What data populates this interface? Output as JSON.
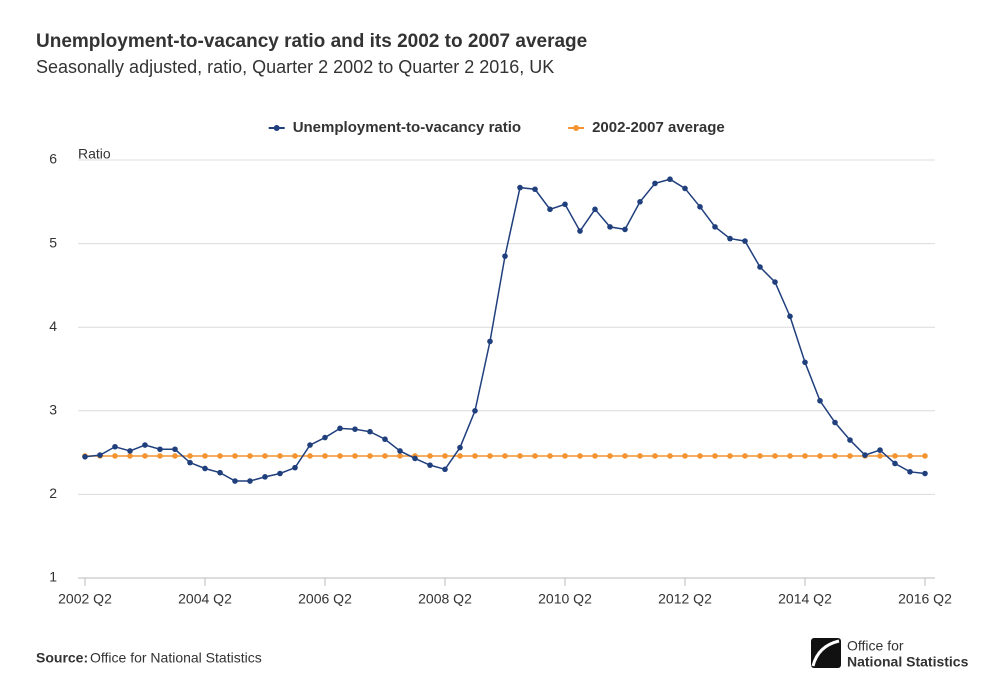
{
  "chart_data": {
    "type": "line",
    "title": "Unemployment-to-vacancy ratio and its 2002 to 2007 average",
    "subtitle": "Seasonally adjusted, ratio, Quarter 2 2002 to Quarter 2 2016, UK",
    "y_label": "Ratio",
    "categories": [
      "2002 Q2",
      null,
      null,
      null,
      null,
      null,
      null,
      null,
      "2004 Q2",
      null,
      null,
      null,
      null,
      null,
      null,
      null,
      "2006 Q2",
      null,
      null,
      null,
      null,
      null,
      null,
      null,
      "2008 Q2",
      null,
      null,
      null,
      null,
      null,
      null,
      null,
      "2010 Q2",
      null,
      null,
      null,
      null,
      null,
      null,
      null,
      "2012 Q2",
      null,
      null,
      null,
      null,
      null,
      null,
      null,
      "2014 Q2",
      null,
      null,
      null,
      null,
      null,
      null,
      null,
      "2016 Q2"
    ],
    "series": [
      {
        "name": "Unemployment-to-vacancy ratio",
        "color": "#203f7d",
        "values": [
          2.45,
          2.47,
          2.57,
          2.52,
          2.59,
          2.54,
          2.54,
          2.38,
          2.31,
          2.26,
          2.16,
          2.16,
          2.21,
          2.25,
          2.32,
          2.59,
          2.68,
          2.79,
          2.78,
          2.75,
          2.66,
          2.52,
          2.43,
          2.35,
          2.3,
          2.56,
          3.0,
          3.83,
          4.85,
          5.67,
          5.65,
          5.41,
          5.47,
          5.15,
          5.41,
          5.2,
          5.17,
          5.5,
          5.72,
          5.77,
          5.66,
          5.44,
          5.2,
          5.06,
          5.03,
          4.72,
          4.54,
          4.13,
          3.58,
          3.12,
          2.86,
          2.65,
          2.47,
          2.53,
          2.37,
          2.27,
          2.25
        ]
      },
      {
        "name": "2002-2007 average",
        "color": "#f39431",
        "values": [
          2.46,
          2.46,
          2.46,
          2.46,
          2.46,
          2.46,
          2.46,
          2.46,
          2.46,
          2.46,
          2.46,
          2.46,
          2.46,
          2.46,
          2.46,
          2.46,
          2.46,
          2.46,
          2.46,
          2.46,
          2.46,
          2.46,
          2.46,
          2.46,
          2.46,
          2.46,
          2.46,
          2.46,
          2.46,
          2.46,
          2.46,
          2.46,
          2.46,
          2.46,
          2.46,
          2.46,
          2.46,
          2.46,
          2.46,
          2.46,
          2.46,
          2.46,
          2.46,
          2.46,
          2.46,
          2.46,
          2.46,
          2.46,
          2.46,
          2.46,
          2.46,
          2.46,
          2.46,
          2.46,
          2.46,
          2.46,
          2.46
        ]
      }
    ],
    "ylim": [
      1,
      6
    ],
    "yticks": [
      1,
      2,
      3,
      4,
      5,
      6
    ],
    "grid": true,
    "legend": "top"
  },
  "footer": {
    "source_label": "Source:",
    "source": "Office for National Statistics",
    "logo": [
      "Office for",
      "National Statistics"
    ]
  }
}
